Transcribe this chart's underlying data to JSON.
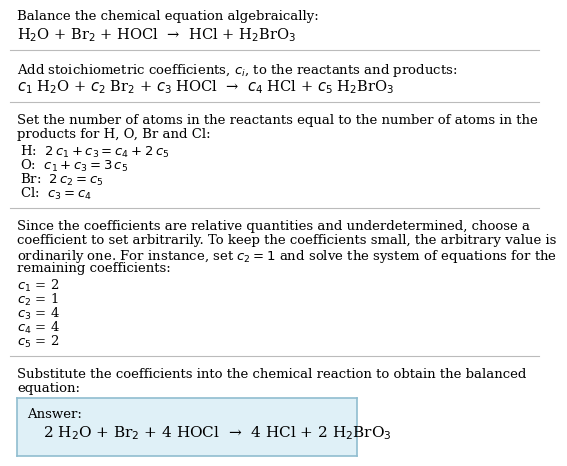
{
  "title": "Balance the chemical equation algebraically:",
  "eq1": "H$_2$O + Br$_2$ + HOCl  →  HCl + H$_2$BrO$_3$",
  "section2_header": "Add stoichiometric coefficients, $c_i$, to the reactants and products:",
  "eq2": "$c_1$ H$_2$O + $c_2$ Br$_2$ + $c_3$ HOCl  →  $c_4$ HCl + $c_5$ H$_2$BrO$_3$",
  "section3_line1": "Set the number of atoms in the reactants equal to the number of atoms in the",
  "section3_line2": "products for H, O, Br and Cl:",
  "atom_H": "H:  $2\\,c_1 + c_3 = c_4 + 2\\,c_5$",
  "atom_O": "O:  $c_1 + c_3 = 3\\,c_5$",
  "atom_Br": "Br:  $2\\,c_2 = c_5$",
  "atom_Cl": "Cl:  $c_3 = c_4$",
  "section4_line1": "Since the coefficients are relative quantities and underdetermined, choose a",
  "section4_line2": "coefficient to set arbitrarily. To keep the coefficients small, the arbitrary value is",
  "section4_line3": "ordinarily one. For instance, set $c_2 = 1$ and solve the system of equations for the",
  "section4_line4": "remaining coefficients:",
  "coeff1": "$c_1$ = 2",
  "coeff2": "$c_2$ = 1",
  "coeff3": "$c_3$ = 4",
  "coeff4": "$c_4$ = 4",
  "coeff5": "$c_5$ = 2",
  "section5_line1": "Substitute the coefficients into the chemical reaction to obtain the balanced",
  "section5_line2": "equation:",
  "answer_label": "Answer:",
  "answer_eq": "2 H$_2$O + Br$_2$ + 4 HOCl  →  4 HCl + 2 H$_2$BrO$_3$",
  "bg_color": "#ffffff",
  "text_color": "#000000",
  "answer_box_facecolor": "#dff0f7",
  "answer_box_edgecolor": "#90bdd0",
  "sep_color": "#bbbbbb",
  "font_size": 9.5,
  "font_size_eq": 10.5,
  "font_family": "DejaVu Serif"
}
